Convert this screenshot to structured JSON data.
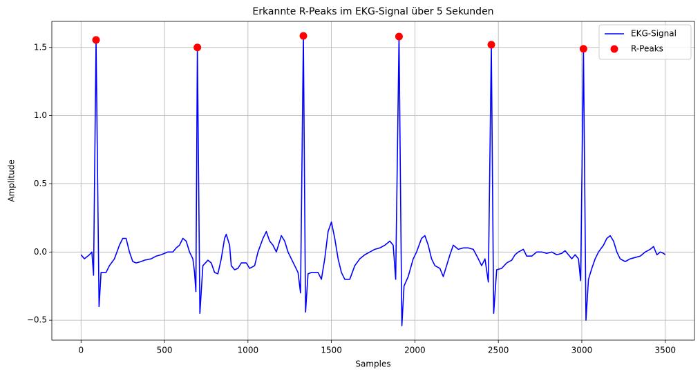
{
  "chart_data": {
    "type": "line",
    "title": "Erkannte R-Peaks im EKG-Signal über 5 Sekunden",
    "x_label": "Samples",
    "y_label": "Amplitude",
    "xlim": [
      -175,
      3675
    ],
    "ylim": [
      -0.646,
      1.691
    ],
    "xticks": [
      0,
      500,
      1000,
      1500,
      2000,
      2500,
      3000,
      3500
    ],
    "yticks": [
      {
        "value": -0.5,
        "label": "−0.5"
      },
      {
        "value": 0,
        "label": "0.0"
      },
      0.5,
      {
        "value": 1,
        "label": "1.0"
      },
      1.5
    ],
    "grid": true,
    "legend": "upper right",
    "series": [
      {
        "name": "EKG-Signal",
        "color": "#0000ff",
        "style": "line",
        "x": [
          0,
          20,
          50,
          65,
          75,
          90,
          108,
          120,
          150,
          170,
          200,
          230,
          250,
          270,
          290,
          310,
          330,
          360,
          380,
          420,
          450,
          480,
          500,
          520,
          550,
          570,
          590,
          610,
          630,
          650,
          670,
          680,
          688,
          697,
          712,
          730,
          760,
          780,
          800,
          820,
          840,
          860,
          870,
          890,
          900,
          920,
          940,
          960,
          990,
          1010,
          1040,
          1060,
          1090,
          1110,
          1130,
          1150,
          1170,
          1200,
          1220,
          1240,
          1260,
          1280,
          1300,
          1315,
          1332,
          1345,
          1360,
          1380,
          1420,
          1440,
          1460,
          1480,
          1500,
          1520,
          1540,
          1560,
          1580,
          1610,
          1640,
          1670,
          1700,
          1730,
          1760,
          1790,
          1820,
          1850,
          1870,
          1885,
          1905,
          1922,
          1935,
          1960,
          1990,
          2010,
          2040,
          2060,
          2080,
          2100,
          2120,
          2150,
          2170,
          2190,
          2210,
          2230,
          2260,
          2290,
          2320,
          2350,
          2380,
          2400,
          2420,
          2440,
          2458,
          2472,
          2490,
          2520,
          2550,
          2580,
          2600,
          2620,
          2650,
          2670,
          2700,
          2730,
          2760,
          2790,
          2820,
          2850,
          2880,
          2900,
          2920,
          2940,
          2960,
          2980,
          2993,
          3010,
          3025,
          3040,
          3060,
          3080,
          3100,
          3130,
          3150,
          3170,
          3190,
          3210,
          3230,
          3260,
          3290,
          3320,
          3350,
          3380,
          3410,
          3430,
          3450,
          3470,
          3490,
          3500
        ],
        "values": [
          -0.02,
          -0.05,
          -0.02,
          0,
          -0.17,
          1.555,
          -0.4,
          -0.15,
          -0.15,
          -0.1,
          -0.05,
          0.05,
          0.1,
          0.1,
          0,
          -0.07,
          -0.08,
          -0.07,
          -0.06,
          -0.05,
          -0.03,
          -0.02,
          -0.01,
          0,
          0,
          0.03,
          0.05,
          0.1,
          0.08,
          0,
          -0.05,
          -0.15,
          -0.29,
          1.5,
          -0.45,
          -0.1,
          -0.06,
          -0.08,
          -0.15,
          -0.16,
          -0.05,
          0.1,
          0.13,
          0.05,
          -0.1,
          -0.13,
          -0.12,
          -0.08,
          -0.08,
          -0.12,
          -0.1,
          0,
          0.1,
          0.15,
          0.08,
          0.05,
          0,
          0.12,
          0.08,
          0,
          -0.05,
          -0.1,
          -0.15,
          -0.3,
          1.585,
          -0.44,
          -0.16,
          -0.15,
          -0.15,
          -0.2,
          -0.05,
          0.15,
          0.22,
          0.1,
          -0.05,
          -0.15,
          -0.2,
          -0.2,
          -0.1,
          -0.05,
          -0.02,
          0,
          0.02,
          0.03,
          0.05,
          0.08,
          0.05,
          -0.2,
          1.58,
          -0.54,
          -0.25,
          -0.18,
          -0.05,
          0,
          0.1,
          0.12,
          0.05,
          -0.05,
          -0.1,
          -0.12,
          -0.18,
          -0.1,
          -0.02,
          0.05,
          0.02,
          0.03,
          0.03,
          0.02,
          -0.05,
          -0.1,
          -0.05,
          -0.22,
          1.52,
          -0.45,
          -0.13,
          -0.12,
          -0.08,
          -0.06,
          -0.02,
          0,
          0.02,
          -0.03,
          -0.03,
          0,
          0,
          -0.01,
          0,
          -0.02,
          -0.01,
          0.01,
          -0.02,
          -0.05,
          -0.02,
          -0.05,
          -0.21,
          1.49,
          -0.5,
          -0.2,
          -0.12,
          -0.05,
          0,
          0.05,
          0.1,
          0.12,
          0.08,
          0,
          -0.05,
          -0.07,
          -0.05,
          -0.04,
          -0.03,
          0,
          0.02,
          0.04,
          -0.02,
          0,
          -0.01,
          -0.02
        ]
      },
      {
        "name": "R-Peaks",
        "color": "#ff0000",
        "style": "points",
        "x": [
          90,
          697,
          1332,
          1905,
          2458,
          3010
        ],
        "values": [
          1.555,
          1.5,
          1.585,
          1.58,
          1.52,
          1.49
        ]
      }
    ]
  }
}
